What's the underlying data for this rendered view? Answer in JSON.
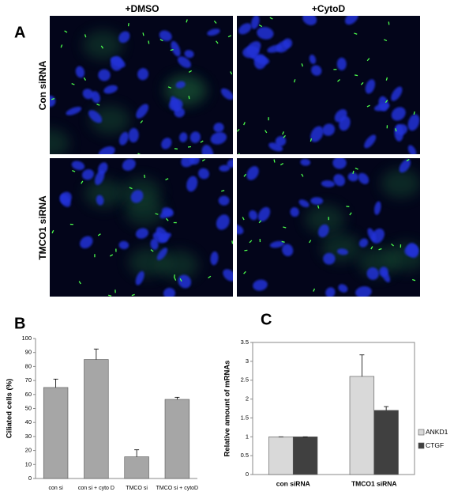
{
  "panel_labels": [
    "A",
    "B",
    "C"
  ],
  "microscopy": {
    "columns": [
      "+DMSO",
      "+CytoD"
    ],
    "rows": [
      "Con siRNA",
      "TMCO1 siRNA"
    ]
  },
  "chart_data": [
    {
      "type": "bar",
      "ylabel": "Ciliated cells (%)",
      "categories": [
        "con si",
        "con si + cyto D",
        "TMCO si",
        "TMCO si + cytoD"
      ],
      "values": [
        65,
        85,
        15.5,
        56.5
      ],
      "errors": [
        6,
        7.5,
        5,
        1.5
      ],
      "color": "#a6a6a6",
      "ylim": [
        0,
        100
      ],
      "yticks": [
        0,
        10,
        20,
        30,
        40,
        50,
        60,
        70,
        80,
        90,
        100
      ]
    },
    {
      "type": "bar",
      "ylabel": "Relative amount of mRNAs",
      "categories": [
        "con siRNA",
        "TMCO1 siRNA"
      ],
      "series": [
        {
          "name": "ANKD1",
          "color": "#d9d9d9",
          "values": [
            1,
            2.6
          ],
          "errors": [
            0,
            0.57
          ]
        },
        {
          "name": "CTGF",
          "color": "#404040",
          "values": [
            1,
            1.7
          ],
          "errors": [
            0,
            0.1
          ]
        }
      ],
      "ylim": [
        0,
        3.5
      ],
      "yticks": [
        0,
        0.5,
        1,
        1.5,
        2,
        2.5,
        3,
        3.5
      ],
      "legend": "right",
      "frame": true
    }
  ]
}
